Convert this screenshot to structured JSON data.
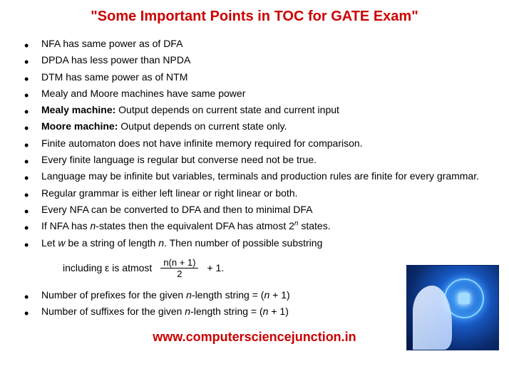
{
  "title": "\"Some Important Points in TOC for GATE Exam\"",
  "title_color": "#cc0000",
  "text_color": "#000000",
  "background_color": "#ffffff",
  "font_size_title": 20,
  "font_size_body": 14,
  "points": [
    {
      "text": "NFA has same power as of DFA"
    },
    {
      "text": "DPDA has less power than NPDA"
    },
    {
      "text": "DTM has same power as of NTM"
    },
    {
      "text": "Mealy and Moore machines have same power"
    },
    {
      "prefix_bold": "Mealy machine:",
      "text": " Output depends on current state and current input"
    },
    {
      "prefix_bold": "Moore machine:",
      "text": " Output depends on current state only."
    },
    {
      "text": "Finite automaton does not have infinite memory required for comparison."
    },
    {
      "text": "Every finite language is regular but converse need not be true."
    },
    {
      "text": "Language may be infinite but variables, terminals and production rules are finite for every grammar."
    },
    {
      "text": "Regular grammar is either left linear or right linear or both."
    },
    {
      "text": "Every NFA can be converted to DFA and then to minimal DFA"
    },
    {
      "html": "If NFA has <span class=\"italic\">n</span>-states then the equivalent DFA has atmost 2<sup><span class=\"italic\">n</span></sup> states."
    },
    {
      "html": "Let <span class=\"italic\">w</span> be a string of length <span class=\"italic\">n</span>. Then number of possible substring"
    }
  ],
  "formula": {
    "prefix": "including ε is atmost",
    "numerator": "n(n + 1)",
    "denominator": "2",
    "suffix": "+ 1."
  },
  "points2": [
    {
      "html": "Number of prefixes for the given <span class=\"italic\">n</span>-length string = (<span class=\"italic\">n</span> + 1)"
    },
    {
      "html": "Number of suffixes for the given <span class=\"italic\">n</span>-length string = (<span class=\"italic\">n</span> + 1)"
    }
  ],
  "footer_url": "www.computersciencejunction.in",
  "footer_color": "#cc0000",
  "side_image": {
    "description": "AI face with glowing circuit sphere",
    "bg_gradient": [
      "#4fb3ff",
      "#1a5fd0",
      "#0a2a6b",
      "#041642"
    ]
  }
}
